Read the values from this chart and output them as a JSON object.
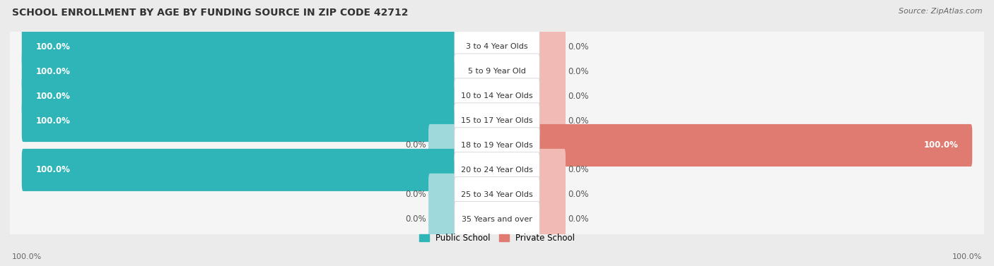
{
  "title": "SCHOOL ENROLLMENT BY AGE BY FUNDING SOURCE IN ZIP CODE 42712",
  "source": "Source: ZipAtlas.com",
  "categories": [
    "3 to 4 Year Olds",
    "5 to 9 Year Old",
    "10 to 14 Year Olds",
    "15 to 17 Year Olds",
    "18 to 19 Year Olds",
    "20 to 24 Year Olds",
    "25 to 34 Year Olds",
    "35 Years and over"
  ],
  "public_values": [
    100.0,
    100.0,
    100.0,
    100.0,
    0.0,
    100.0,
    0.0,
    0.0
  ],
  "private_values": [
    0.0,
    0.0,
    0.0,
    0.0,
    100.0,
    0.0,
    0.0,
    0.0
  ],
  "public_color": "#2fb5b8",
  "public_color_light": "#9fd9db",
  "private_color": "#e07b72",
  "private_color_light": "#f2bab5",
  "bg_color": "#ebebeb",
  "row_bg_light": "#f5f5f5",
  "row_bg_sep": "#e0e0e0",
  "title_fontsize": 10,
  "source_fontsize": 8,
  "label_fontsize": 8.5,
  "cat_fontsize": 8,
  "legend_fontsize": 8.5,
  "axis_label_fontsize": 8
}
